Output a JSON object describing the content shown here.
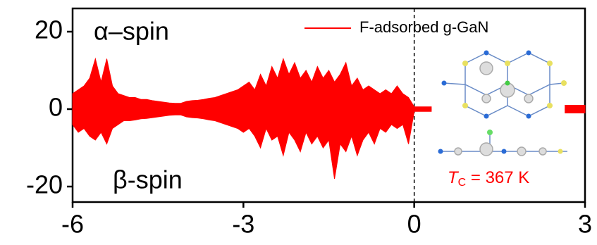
{
  "chart_data": {
    "type": "area",
    "x": [
      -6.0,
      -5.9,
      -5.8,
      -5.7,
      -5.6,
      -5.5,
      -5.4,
      -5.3,
      -5.2,
      -5.1,
      -5.0,
      -4.9,
      -4.8,
      -4.7,
      -4.6,
      -4.5,
      -4.4,
      -4.3,
      -4.2,
      -4.1,
      -4.0,
      -3.9,
      -3.8,
      -3.7,
      -3.6,
      -3.5,
      -3.4,
      -3.3,
      -3.2,
      -3.1,
      -3.0,
      -2.9,
      -2.8,
      -2.7,
      -2.6,
      -2.5,
      -2.4,
      -2.3,
      -2.2,
      -2.1,
      -2.0,
      -1.9,
      -1.8,
      -1.7,
      -1.6,
      -1.5,
      -1.4,
      -1.3,
      -1.2,
      -1.1,
      -1.0,
      -0.9,
      -0.8,
      -0.7,
      -0.6,
      -0.5,
      -0.4,
      -0.3,
      -0.2,
      -0.1,
      0.0,
      0.1,
      0.2,
      0.3,
      1.5,
      2.65,
      3.0
    ],
    "series": [
      {
        "name": "F-adsorbed g-GaN",
        "color": "#ff0000",
        "values": [
          4,
          5,
          6,
          8,
          13,
          7,
          13,
          6,
          4,
          3.5,
          3,
          3,
          2.5,
          2.5,
          2.2,
          2,
          1.8,
          1.6,
          1.5,
          1.5,
          2,
          2.2,
          2.3,
          2.5,
          2.8,
          3,
          3.5,
          4,
          4.5,
          5,
          6,
          7,
          5,
          9,
          6,
          11,
          8,
          13,
          9,
          12,
          8,
          10,
          7,
          11,
          8,
          10,
          7,
          9,
          12,
          6,
          8,
          5,
          6,
          5,
          4,
          5,
          4,
          6,
          4,
          3,
          0.6,
          0.6,
          0.6,
          0.6,
          null,
          1,
          1
        ]
      },
      {
        "color": "#ff0000",
        "values": [
          -4,
          -6,
          -5,
          -7,
          -8,
          -6,
          -9,
          -5,
          -4,
          -3,
          -3,
          -2.8,
          -2.5,
          -2.4,
          -2.2,
          -2,
          -1.8,
          -1.6,
          -1.5,
          -1.5,
          -2,
          -2.2,
          -2.3,
          -2.5,
          -2.8,
          -3,
          -3.5,
          -4,
          -4.5,
          -5,
          -6,
          -5,
          -7,
          -10,
          -5,
          -8,
          -7,
          -12,
          -6,
          -8,
          -11,
          -6,
          -9,
          -7,
          -10,
          -8,
          -18,
          -9,
          -11,
          -7,
          -12,
          -8,
          -6,
          -9,
          -5,
          -6,
          -4,
          -5,
          -4,
          -9,
          -0.6,
          -0.6,
          -0.6,
          -0.6,
          null,
          -1,
          -1
        ]
      }
    ],
    "xlim": [
      -6,
      3
    ],
    "ylim": [
      -24,
      26
    ],
    "xticks": [
      -6,
      -3,
      0,
      3
    ],
    "yticks": [
      -20,
      0,
      20
    ],
    "vline": 0,
    "alpha_label": "α–spin",
    "beta_label": "β-spin",
    "tc_label": [
      "T",
      "C",
      " = 367 K"
    ],
    "legend": "upper right"
  }
}
